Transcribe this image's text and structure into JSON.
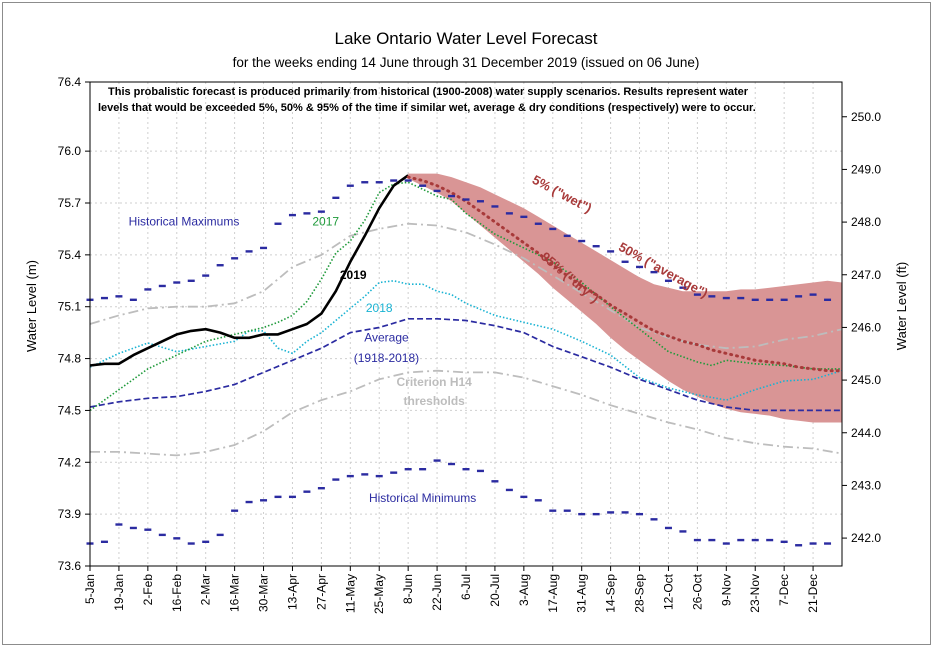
{
  "chart_data": {
    "type": "line",
    "title": "Lake Ontario Water Level Forecast",
    "subtitle": "for the weeks ending 14 June through 31 December 2019 (issued on 06 June)",
    "note": "This probalistic forecast is produced primarily from historical (1900-2008) water supply scenarios.  Results represent water levels that would be exceeded 5%, 50% & 95% of the time if similar wet, average & dry conditions (respectively) were to occur.",
    "ylabel": "Water Level (m)",
    "ylabel_right": "Water Level (ft)",
    "ylim": [
      73.6,
      76.4
    ],
    "yticks": [
      "73.6",
      "73.9",
      "74.2",
      "74.5",
      "74.8",
      "75.1",
      "75.4",
      "75.7",
      "76.0",
      "76.4"
    ],
    "ylim_right_ft": [
      241.47,
      250.66
    ],
    "yticks_right": [
      "242.0",
      "243.0",
      "244.0",
      "245.0",
      "246.0",
      "247.0",
      "248.0",
      "249.0",
      "250.0"
    ],
    "xlim_week": [
      0,
      52
    ],
    "xtick_labels": [
      "5-Jan",
      "19-Jan",
      "2-Feb",
      "16-Feb",
      "2-Mar",
      "16-Mar",
      "30-Mar",
      "13-Apr",
      "27-Apr",
      "11-May",
      "25-May",
      "8-Jun",
      "22-Jun",
      "6-Jul",
      "20-Jul",
      "3-Aug",
      "17-Aug",
      "31-Aug",
      "14-Sep",
      "28-Sep",
      "12-Oct",
      "26-Oct",
      "9-Nov",
      "23-Nov",
      "7-Dec",
      "21-Dec"
    ],
    "grid": true,
    "colors": {
      "y2019": "#000000",
      "y2017": "#1e9a3a",
      "y2018": "#19b3d3",
      "average": "#2b2ba1",
      "hist_max": "#2b2ba1",
      "hist_min": "#2b2ba1",
      "criterion": "#bdbdbd",
      "band": "#d99595",
      "band_edge": "#b04848",
      "forecast_50": "#a83a3a",
      "note": "#a63a3a",
      "grid": "#cfcfcf"
    },
    "annotations": [
      {
        "id": "hist_max",
        "text": "Historical Maximums",
        "at": [
          6.5,
          75.57
        ],
        "color": "#2b2ba1"
      },
      {
        "id": "y2017",
        "text": "2017",
        "at": [
          16.3,
          75.57
        ],
        "color": "#1e9a3a"
      },
      {
        "id": "y2019",
        "text": "2019",
        "at": [
          18.2,
          75.26
        ],
        "bold": true,
        "color": "#000000"
      },
      {
        "id": "y2018",
        "text": "2018",
        "at": [
          20.0,
          75.07
        ],
        "color": "#19b3d3"
      },
      {
        "id": "avg1",
        "text": "Average",
        "at": [
          20.5,
          74.9
        ],
        "color": "#2b2ba1"
      },
      {
        "id": "avg2",
        "text": "(1918-2018)",
        "at": [
          20.5,
          74.78
        ],
        "color": "#2b2ba1"
      },
      {
        "id": "crit1",
        "text": "Criterion H14",
        "at": [
          23.8,
          74.64
        ],
        "color": "#bdbdbd",
        "bold": true
      },
      {
        "id": "crit2",
        "text": "thresholds",
        "at": [
          23.8,
          74.53
        ],
        "color": "#bdbdbd",
        "bold": true
      },
      {
        "id": "hist_min",
        "text": "Historical Minimums",
        "at": [
          23.0,
          73.97
        ],
        "color": "#2b2ba1"
      },
      {
        "id": "p5",
        "text": "5% (\"wet\")",
        "at": [
          32.5,
          75.73
        ],
        "rotate": 28,
        "color": "#a83a3a",
        "bold": true
      },
      {
        "id": "p50",
        "text": "50% (\"average\")",
        "at": [
          39.5,
          75.29
        ],
        "rotate": 29,
        "color": "#a83a3a",
        "bold": true
      },
      {
        "id": "p95",
        "text": "95% (\"dry\")",
        "at": [
          33.0,
          75.25
        ],
        "rotate": 40,
        "color": "#a83a3a",
        "bold": true
      }
    ],
    "series": [
      {
        "name": "2019",
        "style": "solid",
        "x": [
          0,
          1,
          2,
          3,
          4,
          5,
          6,
          7,
          8,
          9,
          10,
          11,
          12,
          13,
          14,
          15,
          16,
          17,
          18,
          19,
          20,
          21,
          22
        ],
        "values": [
          74.76,
          74.77,
          74.77,
          74.82,
          74.86,
          74.9,
          74.94,
          74.96,
          74.97,
          74.95,
          74.92,
          74.92,
          74.94,
          74.94,
          74.97,
          75.0,
          75.06,
          75.19,
          75.36,
          75.51,
          75.67,
          75.8,
          75.86
        ]
      },
      {
        "name": "2017",
        "style": "dotted",
        "x": [
          0,
          2,
          4,
          6,
          8,
          10,
          12,
          13,
          14,
          15,
          16,
          17,
          18,
          19,
          20,
          21,
          22,
          23,
          24,
          25,
          26,
          28,
          30,
          32,
          34,
          36,
          38,
          40,
          42,
          43,
          44,
          46,
          48,
          50,
          52
        ],
        "values": [
          74.5,
          74.62,
          74.74,
          74.82,
          74.9,
          74.94,
          74.98,
          75.01,
          75.05,
          75.13,
          75.26,
          75.41,
          75.48,
          75.6,
          75.76,
          75.81,
          75.82,
          75.78,
          75.74,
          75.72,
          75.64,
          75.52,
          75.44,
          75.36,
          75.24,
          75.1,
          74.97,
          74.84,
          74.78,
          74.76,
          74.79,
          74.77,
          74.76,
          74.74,
          74.74
        ]
      },
      {
        "name": "2018",
        "style": "dotted",
        "x": [
          0,
          2,
          4,
          6,
          8,
          10,
          11,
          12,
          13,
          14,
          15,
          16,
          17,
          18,
          19,
          20,
          21,
          22,
          23,
          24,
          25,
          26,
          28,
          30,
          32,
          34,
          36,
          38,
          40,
          42,
          44,
          46,
          48,
          50,
          52
        ],
        "values": [
          74.75,
          74.83,
          74.89,
          74.84,
          74.87,
          74.9,
          74.96,
          74.96,
          74.86,
          74.83,
          74.9,
          74.95,
          75.02,
          75.09,
          75.16,
          75.24,
          75.25,
          75.23,
          75.23,
          75.19,
          75.17,
          75.12,
          75.05,
          75.01,
          74.97,
          74.9,
          74.82,
          74.69,
          74.63,
          74.59,
          74.56,
          74.62,
          74.67,
          74.68,
          74.73
        ]
      },
      {
        "name": "Average (1918-2018)",
        "style": "dashed",
        "x": [
          0,
          2,
          4,
          6,
          8,
          10,
          12,
          14,
          16,
          18,
          20,
          22,
          24,
          26,
          28,
          30,
          32,
          34,
          36,
          38,
          40,
          42,
          44,
          46,
          48,
          50,
          52
        ],
        "values": [
          74.52,
          74.55,
          74.57,
          74.58,
          74.61,
          74.65,
          74.72,
          74.79,
          74.86,
          74.95,
          74.98,
          75.03,
          75.03,
          75.02,
          74.99,
          74.95,
          74.87,
          74.81,
          74.75,
          74.68,
          74.62,
          74.56,
          74.52,
          74.5,
          74.5,
          74.5,
          74.5
        ]
      },
      {
        "name": "Historical Maximums",
        "style": "marker",
        "x": [
          0,
          1,
          2,
          3,
          4,
          5,
          6,
          7,
          8,
          9,
          10,
          11,
          12,
          13,
          14,
          15,
          16,
          17,
          18,
          19,
          20,
          21,
          22,
          23,
          24,
          25,
          26,
          27,
          28,
          29,
          30,
          31,
          32,
          33,
          34,
          35,
          36,
          37,
          38,
          39,
          40,
          41,
          42,
          43,
          44,
          45,
          46,
          47,
          48,
          49,
          50,
          51
        ],
        "values": [
          75.14,
          75.15,
          75.16,
          75.14,
          75.2,
          75.22,
          75.24,
          75.25,
          75.28,
          75.34,
          75.38,
          75.42,
          75.44,
          75.58,
          75.63,
          75.64,
          75.65,
          75.73,
          75.8,
          75.82,
          75.82,
          75.83,
          75.83,
          75.8,
          75.77,
          75.74,
          75.72,
          75.71,
          75.68,
          75.64,
          75.62,
          75.58,
          75.55,
          75.51,
          75.48,
          75.45,
          75.42,
          75.36,
          75.33,
          75.3,
          75.25,
          75.21,
          75.17,
          75.16,
          75.15,
          75.15,
          75.14,
          75.14,
          75.14,
          75.16,
          75.17,
          75.14
        ]
      },
      {
        "name": "Historical Minimums",
        "style": "marker",
        "x": [
          0,
          1,
          2,
          3,
          4,
          5,
          6,
          7,
          8,
          9,
          10,
          11,
          12,
          13,
          14,
          15,
          16,
          17,
          18,
          19,
          20,
          21,
          22,
          23,
          24,
          25,
          26,
          27,
          28,
          29,
          30,
          31,
          32,
          33,
          34,
          35,
          36,
          37,
          38,
          39,
          40,
          41,
          42,
          43,
          44,
          45,
          46,
          47,
          48,
          49,
          50,
          51
        ],
        "values": [
          73.73,
          73.74,
          73.84,
          73.82,
          73.81,
          73.78,
          73.76,
          73.73,
          73.74,
          73.78,
          73.92,
          73.97,
          73.98,
          74.0,
          74.0,
          74.03,
          74.05,
          74.1,
          74.12,
          74.13,
          74.12,
          74.14,
          74.16,
          74.16,
          74.21,
          74.19,
          74.16,
          74.15,
          74.09,
          74.04,
          74.0,
          73.98,
          73.92,
          73.92,
          73.9,
          73.9,
          73.91,
          73.91,
          73.9,
          73.87,
          73.82,
          73.8,
          73.75,
          73.75,
          73.73,
          73.75,
          73.75,
          73.75,
          73.74,
          73.72,
          73.73,
          73.73
        ]
      },
      {
        "name": "Criterion H14 thresholds (upper)",
        "style": "dashdot",
        "x": [
          0,
          2,
          4,
          6,
          8,
          10,
          12,
          14,
          16,
          18,
          20,
          22,
          24,
          26,
          28,
          30,
          32,
          34,
          36,
          38,
          40,
          42,
          44,
          46,
          48,
          50,
          52
        ],
        "values": [
          75.0,
          75.05,
          75.09,
          75.1,
          75.1,
          75.12,
          75.19,
          75.33,
          75.4,
          75.51,
          75.55,
          75.58,
          75.57,
          75.53,
          75.46,
          75.38,
          75.28,
          75.18,
          75.08,
          74.98,
          74.92,
          74.88,
          74.86,
          74.87,
          74.91,
          74.93,
          74.97
        ]
      },
      {
        "name": "Criterion H14 thresholds (lower)",
        "style": "dashdot",
        "x": [
          0,
          2,
          4,
          6,
          8,
          10,
          12,
          14,
          16,
          18,
          20,
          22,
          24,
          26,
          28,
          30,
          32,
          34,
          36,
          38,
          40,
          42,
          44,
          46,
          48,
          50,
          52
        ],
        "values": [
          74.26,
          74.26,
          74.25,
          74.24,
          74.26,
          74.3,
          74.38,
          74.49,
          74.56,
          74.61,
          74.68,
          74.72,
          74.73,
          74.72,
          74.72,
          74.69,
          74.64,
          74.59,
          74.53,
          74.48,
          74.43,
          74.39,
          74.34,
          74.31,
          74.29,
          74.28,
          74.25
        ]
      },
      {
        "name": "5%",
        "style": "band_upper",
        "x": [
          22,
          23,
          24,
          25,
          26,
          27,
          28,
          29,
          30,
          31,
          32,
          33,
          34,
          35,
          36,
          37,
          38,
          39,
          40,
          41,
          42,
          43,
          44,
          45,
          46,
          47,
          48,
          49,
          50,
          51,
          52
        ],
        "values": [
          75.87,
          75.87,
          75.87,
          75.85,
          75.82,
          75.79,
          75.75,
          75.71,
          75.67,
          75.62,
          75.57,
          75.52,
          75.47,
          75.42,
          75.37,
          75.32,
          75.27,
          75.23,
          75.21,
          75.19,
          75.19,
          75.19,
          75.19,
          75.2,
          75.2,
          75.21,
          75.22,
          75.23,
          75.24,
          75.25,
          75.24
        ]
      },
      {
        "name": "50%",
        "style": "dotted_thick",
        "x": [
          22,
          23,
          24,
          25,
          26,
          27,
          28,
          29,
          30,
          31,
          32,
          33,
          34,
          35,
          36,
          37,
          38,
          39,
          40,
          41,
          42,
          43,
          44,
          45,
          46,
          47,
          48,
          49,
          50,
          51,
          52
        ],
        "values": [
          75.85,
          75.83,
          75.8,
          75.76,
          75.71,
          75.65,
          75.59,
          75.53,
          75.47,
          75.41,
          75.34,
          75.28,
          75.22,
          75.17,
          75.11,
          75.06,
          75.01,
          74.96,
          74.93,
          74.9,
          74.88,
          74.85,
          74.83,
          74.81,
          74.79,
          74.78,
          74.77,
          74.75,
          74.74,
          74.73,
          74.73
        ]
      },
      {
        "name": "95%",
        "style": "band_lower",
        "x": [
          22,
          23,
          24,
          25,
          26,
          27,
          28,
          29,
          30,
          31,
          32,
          33,
          34,
          35,
          36,
          37,
          38,
          39,
          40,
          41,
          42,
          43,
          44,
          45,
          46,
          47,
          48,
          49,
          50,
          51,
          52
        ],
        "values": [
          75.84,
          75.8,
          75.76,
          75.71,
          75.64,
          75.57,
          75.5,
          75.43,
          75.36,
          75.29,
          75.21,
          75.14,
          75.07,
          75.0,
          74.92,
          74.85,
          74.79,
          74.73,
          74.67,
          74.62,
          74.58,
          74.54,
          74.51,
          74.49,
          74.48,
          74.47,
          74.45,
          74.44,
          74.43,
          74.43,
          74.43
        ]
      }
    ]
  }
}
